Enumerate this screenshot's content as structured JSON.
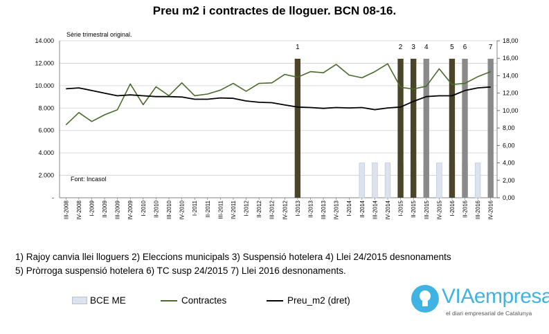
{
  "title": "Preu m2 i contractes de lloguer. BCN 08-16.",
  "chart_data": {
    "type": "line",
    "title": "Preu m2 i contractes de lloguer. BCN 08-16.",
    "subtitle": "Sèrie trimestral original.",
    "source_note": "Font: Incasol",
    "categories": [
      "III-2008",
      "IV-2008",
      "I-2009",
      "II-2009",
      "III-2009",
      "IV-2009",
      "I-2010",
      "II-2010",
      "III-2010",
      "IV-2010",
      "I-2011",
      "II-2011",
      "III-2011",
      "IV-2011",
      "I-2012",
      "II-2012",
      "III-2012",
      "IV-2012",
      "I-2013",
      "II-2013",
      "III-2013",
      "IV-2013",
      "I-2014",
      "II-2014",
      "III-2014",
      "IV-2014",
      "I-2015",
      "II-2015",
      "III-2015",
      "IV-2015",
      "I-2016",
      "II-2016",
      "III-2016",
      "IV-2016"
    ],
    "y_left": {
      "ylim": [
        0,
        14000
      ],
      "ticks": [
        "-",
        "2.000",
        "4.000",
        "6.000",
        "8.000",
        "10.000",
        "12.000",
        "14.000"
      ]
    },
    "y_right": {
      "ylim": [
        0,
        18
      ],
      "ticks": [
        "0,00",
        "2,00",
        "4,00",
        "6,00",
        "8,00",
        "10,00",
        "12,00",
        "14,00",
        "16,00",
        "18,00"
      ]
    },
    "series": [
      {
        "name": "BCE ME",
        "type": "bar",
        "axis": "right",
        "color": "#dde3ee",
        "values": [
          null,
          null,
          null,
          null,
          null,
          null,
          null,
          null,
          null,
          null,
          null,
          null,
          null,
          null,
          null,
          null,
          null,
          null,
          null,
          null,
          null,
          null,
          null,
          4,
          4,
          4,
          4,
          4,
          4,
          4,
          4,
          4,
          4,
          4
        ]
      },
      {
        "name": "Contractes",
        "type": "line",
        "axis": "left",
        "color": "#4a6a2a",
        "values": [
          6500,
          7600,
          6800,
          7400,
          7850,
          10150,
          8300,
          9900,
          9100,
          10250,
          9100,
          9250,
          9600,
          10200,
          9500,
          10200,
          10250,
          11000,
          10750,
          11250,
          11150,
          11900,
          10950,
          10700,
          11250,
          11950,
          9850,
          9700,
          9950,
          11500,
          10100,
          10200,
          10800,
          11250
        ]
      },
      {
        "name": "Preu_m2 (dret)",
        "type": "line",
        "axis": "right",
        "color": "#000000",
        "values": [
          12.5,
          12.6,
          12.3,
          12.0,
          11.7,
          11.8,
          11.7,
          11.6,
          11.6,
          11.55,
          11.3,
          11.3,
          11.45,
          11.4,
          11.1,
          10.95,
          10.9,
          10.65,
          10.4,
          10.35,
          10.25,
          10.35,
          10.3,
          10.35,
          10.1,
          10.3,
          10.4,
          11.05,
          11.6,
          11.7,
          11.7,
          12.3,
          12.6,
          12.7
        ]
      }
    ],
    "events": [
      {
        "label": "1",
        "category": "I-2013",
        "color": "#4a4528"
      },
      {
        "label": "2",
        "category": "I-2015",
        "color": "#4a4528"
      },
      {
        "label": "3",
        "category": "II-2015",
        "color": "#4a4528"
      },
      {
        "label": "4",
        "category": "III-2015",
        "color": "#8a8a8a"
      },
      {
        "label": "5",
        "category": "I-2016",
        "color": "#4a4528"
      },
      {
        "label": "6",
        "category": "II-2016",
        "color": "#8a8a8a"
      },
      {
        "label": "7",
        "category": "IV-2016",
        "color": "#8a8a8a"
      }
    ],
    "grid": "horizontal",
    "legend": "bottom"
  },
  "notes": {
    "line1": "1) Rajoy canvia llei lloguers 2) Eleccions municipals 3) Suspensió hotelera 4) Llei 24/2015 desnonaments",
    "line2": "5) Pròrroga suspensió hotelera  6) TC  susp 24/2015 7) Llei 2016 desnonaments."
  },
  "legend": {
    "bar_label": "BCE ME",
    "contracts_label": "Contractes",
    "price_label": "Preu_m2 (dret)"
  },
  "logo": {
    "word_via": "VIA",
    "word_empresa": "empresa",
    "tagline": "el diari empresarial de Catalunya"
  }
}
